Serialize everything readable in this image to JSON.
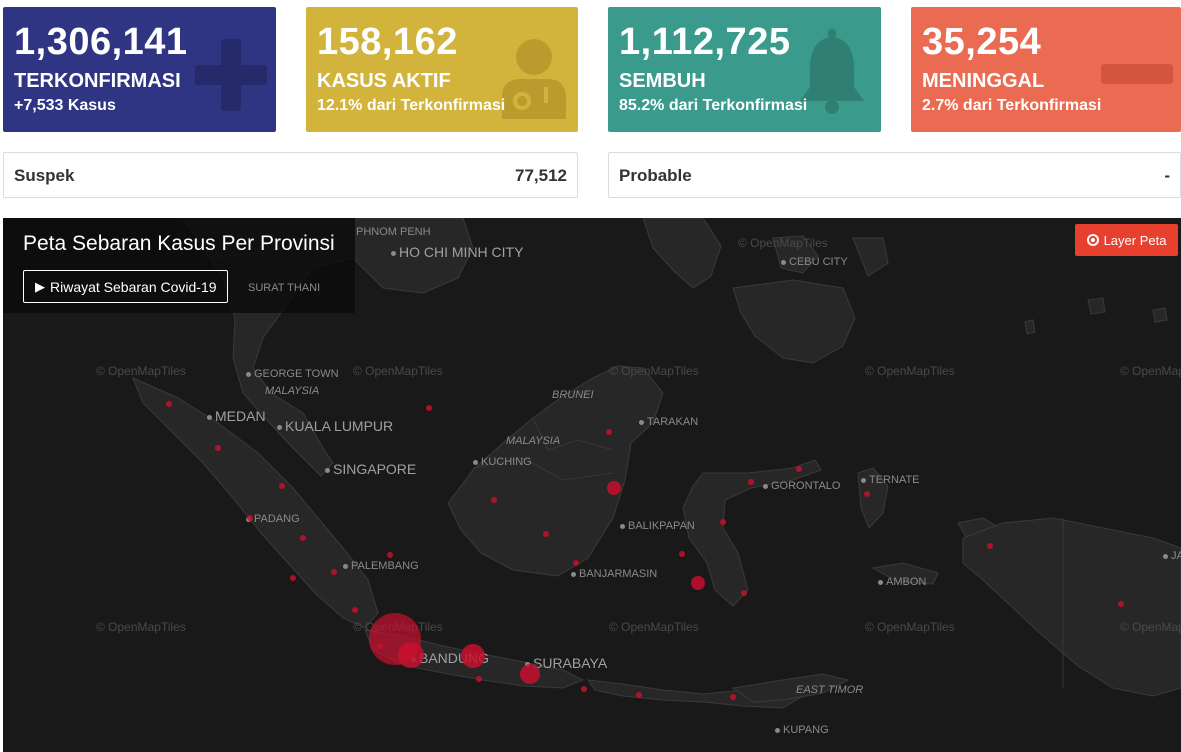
{
  "cards": [
    {
      "value": "1,306,141",
      "label": "TERKONFIRMASI",
      "sub": "+7,533 Kasus",
      "color": "#2f3583",
      "icon": "plus-icon"
    },
    {
      "value": "158,162",
      "label": "KASUS AKTIF",
      "sub": "12.1% dari Terkonfirmasi",
      "color": "#d2b43d",
      "icon": "doctor-icon"
    },
    {
      "value": "1,112,725",
      "label": "SEMBUH",
      "sub": "85.2% dari Terkonfirmasi",
      "color": "#3a9b8c",
      "icon": "bell-icon"
    },
    {
      "value": "35,254",
      "label": "MENINGGAL",
      "sub": "2.7% dari Terkonfirmasi",
      "color": "#eb6b52",
      "icon": "minus-icon"
    }
  ],
  "info": [
    {
      "label": "Suspek",
      "value": "77,512"
    },
    {
      "label": "Probable",
      "value": "-"
    }
  ],
  "map": {
    "title": "Peta Sebaran Kasus Per Provinsi",
    "history_button": "Riwayat Sebaran Covid-19",
    "layer_button": "Layer Peta",
    "watermark": "© OpenMapTiles",
    "cities": {
      "phnom_penh": "PHNOM PENH",
      "ho_chi_minh": "HO CHI MINH CITY",
      "cebu": "CEBU CITY",
      "surat_thani": "SURAT THANI",
      "george_town": "GEORGE TOWN",
      "malaysia1": "MALAYSIA",
      "medan": "MEDAN",
      "kuala_lumpur": "KUALA LUMPUR",
      "brunei": "BRUNEI",
      "tarakan": "TARAKAN",
      "malaysia2": "MALAYSIA",
      "kuching": "KUCHING",
      "singapore": "SINGAPORE",
      "gorontalo": "GORONTALO",
      "ternate": "TERNATE",
      "padang": "PADANG",
      "balikpapan": "BALIKPAPAN",
      "palembang": "PALEMBANG",
      "banjarmasin": "BANJARMASIN",
      "ambon": "AMBON",
      "bandung": "BANDUNG",
      "surabaya": "SURABAYA",
      "east_timor": "EAST TIMOR",
      "kupang": "KUPANG",
      "ja": "JA"
    }
  }
}
